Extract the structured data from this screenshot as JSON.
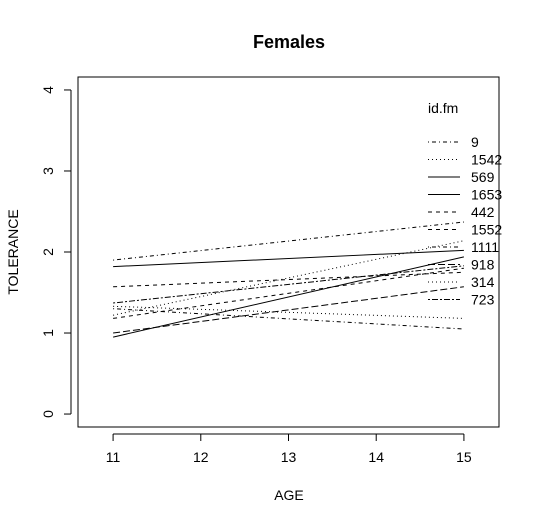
{
  "chart_data": {
    "type": "line",
    "title": "Females",
    "xlabel": "AGE",
    "ylabel": "TOLERANCE",
    "xlim": [
      10.6,
      15.4
    ],
    "ylim": [
      -0.16,
      4.16
    ],
    "x_ticks": [
      11,
      12,
      13,
      14,
      15
    ],
    "y_ticks": [
      0,
      1,
      2,
      3,
      4
    ],
    "x_tick_labels": [
      "11",
      "12",
      "13",
      "14",
      "15"
    ],
    "y_tick_labels": [
      "0",
      "1",
      "2",
      "3",
      "4"
    ],
    "grid": false,
    "legend_title": "id.fm",
    "legend_placement": "right-top",
    "line_color": "#000000",
    "series": [
      {
        "name": "9",
        "dash": "dotdash",
        "x": [
          11,
          15
        ],
        "y": [
          1.9,
          2.37
        ]
      },
      {
        "name": "1542",
        "dash": "dotted",
        "x": [
          11,
          15
        ],
        "y": [
          1.22,
          2.14
        ]
      },
      {
        "name": "569",
        "dash": "solid",
        "x": [
          11,
          15
        ],
        "y": [
          1.82,
          2.02
        ]
      },
      {
        "name": "1653",
        "dash": "solid",
        "x": [
          11,
          15
        ],
        "y": [
          0.95,
          1.94
        ]
      },
      {
        "name": "442",
        "dash": "dashed",
        "x": [
          11,
          15
        ],
        "y": [
          1.18,
          1.8
        ]
      },
      {
        "name": "1552",
        "dash": "dashed",
        "x": [
          11,
          15
        ],
        "y": [
          1.57,
          1.75
        ]
      },
      {
        "name": "1111",
        "dash": "dotdash",
        "x": [
          11,
          15
        ],
        "y": [
          1.3,
          1.05
        ]
      },
      {
        "name": "918",
        "dash": "longdash",
        "x": [
          11,
          15
        ],
        "y": [
          1.0,
          1.57
        ]
      },
      {
        "name": "314",
        "dash": "dotted",
        "x": [
          11,
          15
        ],
        "y": [
          1.33,
          1.18
        ]
      },
      {
        "name": "723",
        "dash": "twodash",
        "x": [
          11,
          15
        ],
        "y": [
          1.37,
          1.83
        ]
      }
    ]
  }
}
